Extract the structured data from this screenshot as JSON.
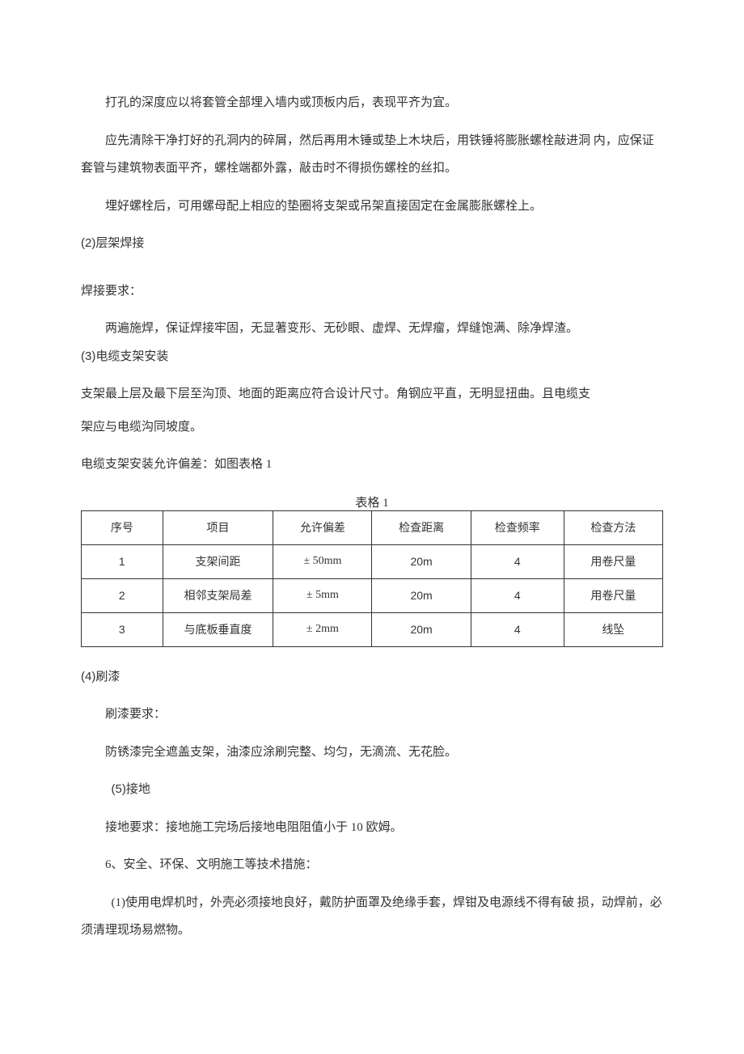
{
  "paragraphs": {
    "p1": "打孔的深度应以将套管全部埋入墙内或顶板内后，表现平齐为宜。",
    "p2": "应先清除干净打好的孔洞内的碎屑，然后再用木锤或垫上木块后，用铁锤将膨胀螺栓敲进洞 内，应保证套管与建筑物表面平齐，螺栓端都外露，敲击时不得损伤螺栓的丝扣。",
    "p3": "埋好螺栓后，可用螺母配上相应的垫圈将支架或吊架直接固定在金属膨胀螺栓上。",
    "h2": "(2)层架焊接",
    "p4": "焊接要求：",
    "p5": "两遍施焊，保证焊接牢固，无显著变形、无砂眼、虚焊、无焊瘤，焊缝饱满、除净焊渣。",
    "h3": "(3)电缆支架安装",
    "p6": "支架最上层及最下层至沟顶、地面的距离应符合设计尺寸。角钢应平直，无明显扭曲。且电缆支",
    "p7": "架应与电缆沟同坡度。",
    "p8": "电缆支架安装允许偏差：如图表格 1",
    "caption": "表格 1",
    "h4": "(4)刷漆",
    "p9": "刷漆要求：",
    "p10": "防锈漆完全遮盖支架，油漆应涂刷完整、均匀，无滴流、无花脸。",
    "h5": "(5)接地",
    "p11": "接地要求：接地施工完场后接地电阻阻值小于 10 欧姆。",
    "p12": "6、安全、环保、文明施工等技术措施：",
    "p13": "(1)使用电焊机时，外壳必须接地良好，戴防护面罩及绝缘手套，焊钳及电源线不得有破 损，动焊前，必须清理现场易燃物。"
  },
  "table": {
    "headers": [
      "序号",
      "项目",
      "允许偏差",
      "检查距离",
      "检查频率",
      "检查方法"
    ],
    "rows": [
      [
        "1",
        "支架间距",
        "± 50mm",
        "20m",
        "4",
        "用卷尺量"
      ],
      [
        "2",
        "相邻支架局差",
        "± 5mm",
        "20m",
        "4",
        "用卷尺量"
      ],
      [
        "3",
        "与底板垂直度",
        "± 2mm",
        "20m",
        "4",
        "线坠"
      ]
    ],
    "col_widths": [
      "14%",
      "19%",
      "17%",
      "17%",
      "16%",
      "17%"
    ]
  },
  "style": {
    "text_color": "#333333",
    "background_color": "#ffffff",
    "border_color": "#333333",
    "base_fontsize": 15,
    "table_fontsize": 14
  }
}
